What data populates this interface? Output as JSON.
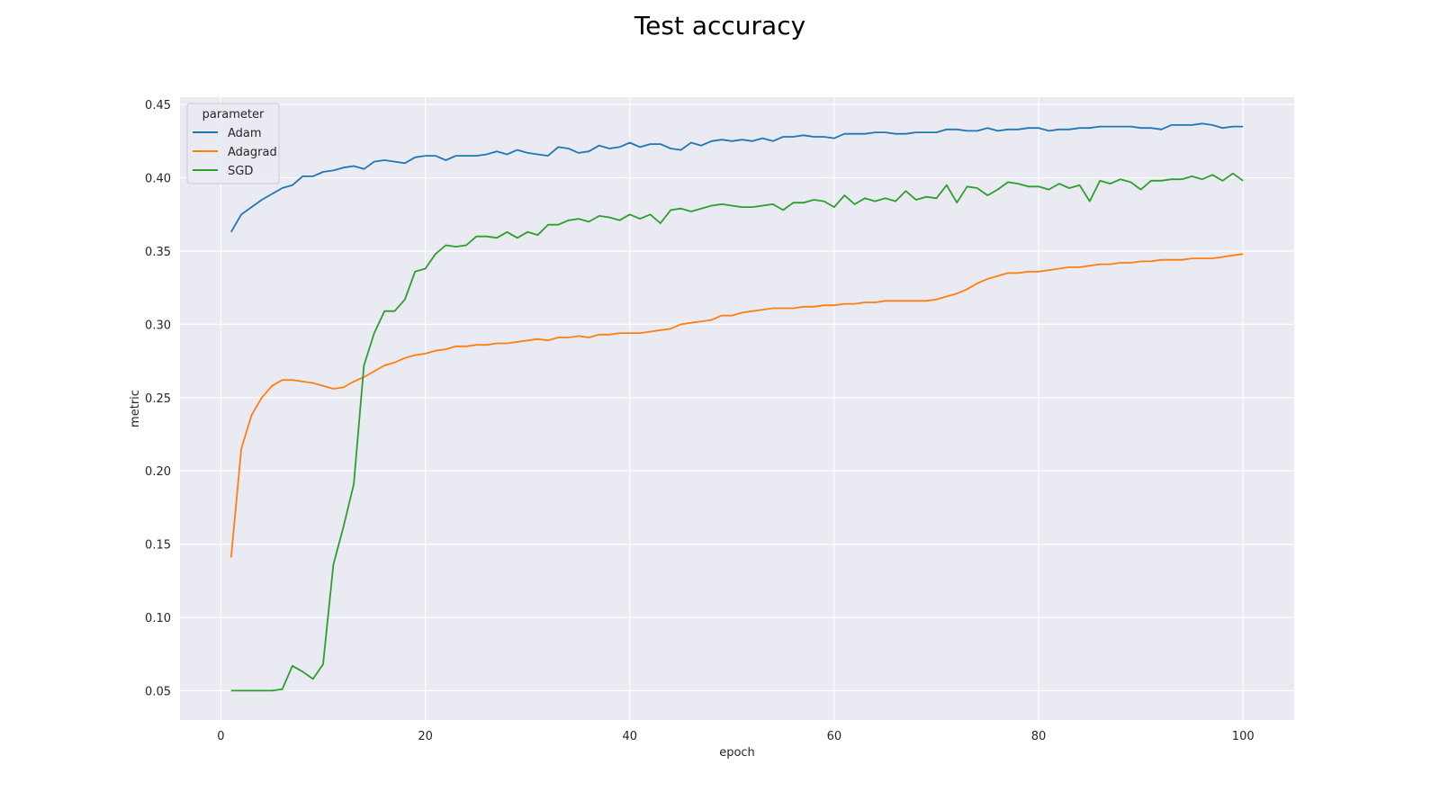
{
  "chart_data": {
    "type": "line",
    "title": "Test accuracy",
    "xlabel": "epoch",
    "ylabel": "metric",
    "xlim": [
      -4,
      105
    ],
    "ylim": [
      0.03,
      0.455
    ],
    "xticks": [
      0,
      20,
      40,
      60,
      80,
      100
    ],
    "yticks": [
      0.05,
      0.1,
      0.15,
      0.2,
      0.25,
      0.3,
      0.35,
      0.4,
      0.45
    ],
    "ytick_labels": [
      "0.05",
      "0.10",
      "0.15",
      "0.20",
      "0.25",
      "0.30",
      "0.35",
      "0.40",
      "0.45"
    ],
    "grid": true,
    "legend": {
      "title": "parameter",
      "placement": "top-left"
    },
    "series": [
      {
        "name": "Adam",
        "color": "#1f77b4",
        "x_start": 1,
        "values": [
          0.363,
          0.375,
          0.38,
          0.385,
          0.389,
          0.393,
          0.395,
          0.401,
          0.401,
          0.404,
          0.405,
          0.407,
          0.408,
          0.406,
          0.411,
          0.412,
          0.411,
          0.41,
          0.414,
          0.415,
          0.415,
          0.412,
          0.415,
          0.415,
          0.415,
          0.416,
          0.418,
          0.416,
          0.419,
          0.417,
          0.416,
          0.415,
          0.421,
          0.42,
          0.417,
          0.418,
          0.422,
          0.42,
          0.421,
          0.424,
          0.421,
          0.423,
          0.423,
          0.42,
          0.419,
          0.424,
          0.422,
          0.425,
          0.426,
          0.425,
          0.426,
          0.425,
          0.427,
          0.425,
          0.428,
          0.428,
          0.429,
          0.428,
          0.428,
          0.427,
          0.43,
          0.43,
          0.43,
          0.431,
          0.431,
          0.43,
          0.43,
          0.431,
          0.431,
          0.431,
          0.433,
          0.433,
          0.432,
          0.432,
          0.434,
          0.432,
          0.433,
          0.433,
          0.434,
          0.434,
          0.432,
          0.433,
          0.433,
          0.434,
          0.434,
          0.435,
          0.435,
          0.435,
          0.435,
          0.434,
          0.434,
          0.433,
          0.436,
          0.436,
          0.436,
          0.437,
          0.436,
          0.434,
          0.435,
          0.435
        ]
      },
      {
        "name": "Adagrad",
        "color": "#ff7f0e",
        "x_start": 1,
        "values": [
          0.141,
          0.215,
          0.238,
          0.25,
          0.258,
          0.262,
          0.262,
          0.261,
          0.26,
          0.258,
          0.256,
          0.257,
          0.261,
          0.264,
          0.268,
          0.272,
          0.274,
          0.277,
          0.279,
          0.28,
          0.282,
          0.283,
          0.285,
          0.285,
          0.286,
          0.286,
          0.287,
          0.287,
          0.288,
          0.289,
          0.29,
          0.289,
          0.291,
          0.291,
          0.292,
          0.291,
          0.293,
          0.293,
          0.294,
          0.294,
          0.294,
          0.295,
          0.296,
          0.297,
          0.3,
          0.301,
          0.302,
          0.303,
          0.306,
          0.306,
          0.308,
          0.309,
          0.31,
          0.311,
          0.311,
          0.311,
          0.312,
          0.312,
          0.313,
          0.313,
          0.314,
          0.314,
          0.315,
          0.315,
          0.316,
          0.316,
          0.316,
          0.316,
          0.316,
          0.317,
          0.319,
          0.321,
          0.324,
          0.328,
          0.331,
          0.333,
          0.335,
          0.335,
          0.336,
          0.336,
          0.337,
          0.338,
          0.339,
          0.339,
          0.34,
          0.341,
          0.341,
          0.342,
          0.342,
          0.343,
          0.343,
          0.344,
          0.344,
          0.344,
          0.345,
          0.345,
          0.345,
          0.346,
          0.347,
          0.348
        ]
      },
      {
        "name": "SGD",
        "color": "#2ca02c",
        "x_start": 1,
        "values": [
          0.05,
          0.05,
          0.05,
          0.05,
          0.05,
          0.051,
          0.067,
          0.063,
          0.058,
          0.068,
          0.136,
          0.162,
          0.191,
          0.272,
          0.294,
          0.309,
          0.309,
          0.317,
          0.336,
          0.338,
          0.348,
          0.354,
          0.353,
          0.354,
          0.36,
          0.36,
          0.359,
          0.363,
          0.359,
          0.363,
          0.361,
          0.368,
          0.368,
          0.371,
          0.372,
          0.37,
          0.374,
          0.373,
          0.371,
          0.375,
          0.372,
          0.375,
          0.369,
          0.378,
          0.379,
          0.377,
          0.379,
          0.381,
          0.382,
          0.381,
          0.38,
          0.38,
          0.381,
          0.382,
          0.378,
          0.383,
          0.383,
          0.385,
          0.384,
          0.38,
          0.388,
          0.382,
          0.386,
          0.384,
          0.386,
          0.384,
          0.391,
          0.385,
          0.387,
          0.386,
          0.395,
          0.383,
          0.394,
          0.393,
          0.388,
          0.392,
          0.397,
          0.396,
          0.394,
          0.394,
          0.392,
          0.396,
          0.393,
          0.395,
          0.384,
          0.398,
          0.396,
          0.399,
          0.397,
          0.392,
          0.398,
          0.398,
          0.399,
          0.399,
          0.401,
          0.399,
          0.402,
          0.398,
          0.403,
          0.398
        ]
      }
    ]
  }
}
